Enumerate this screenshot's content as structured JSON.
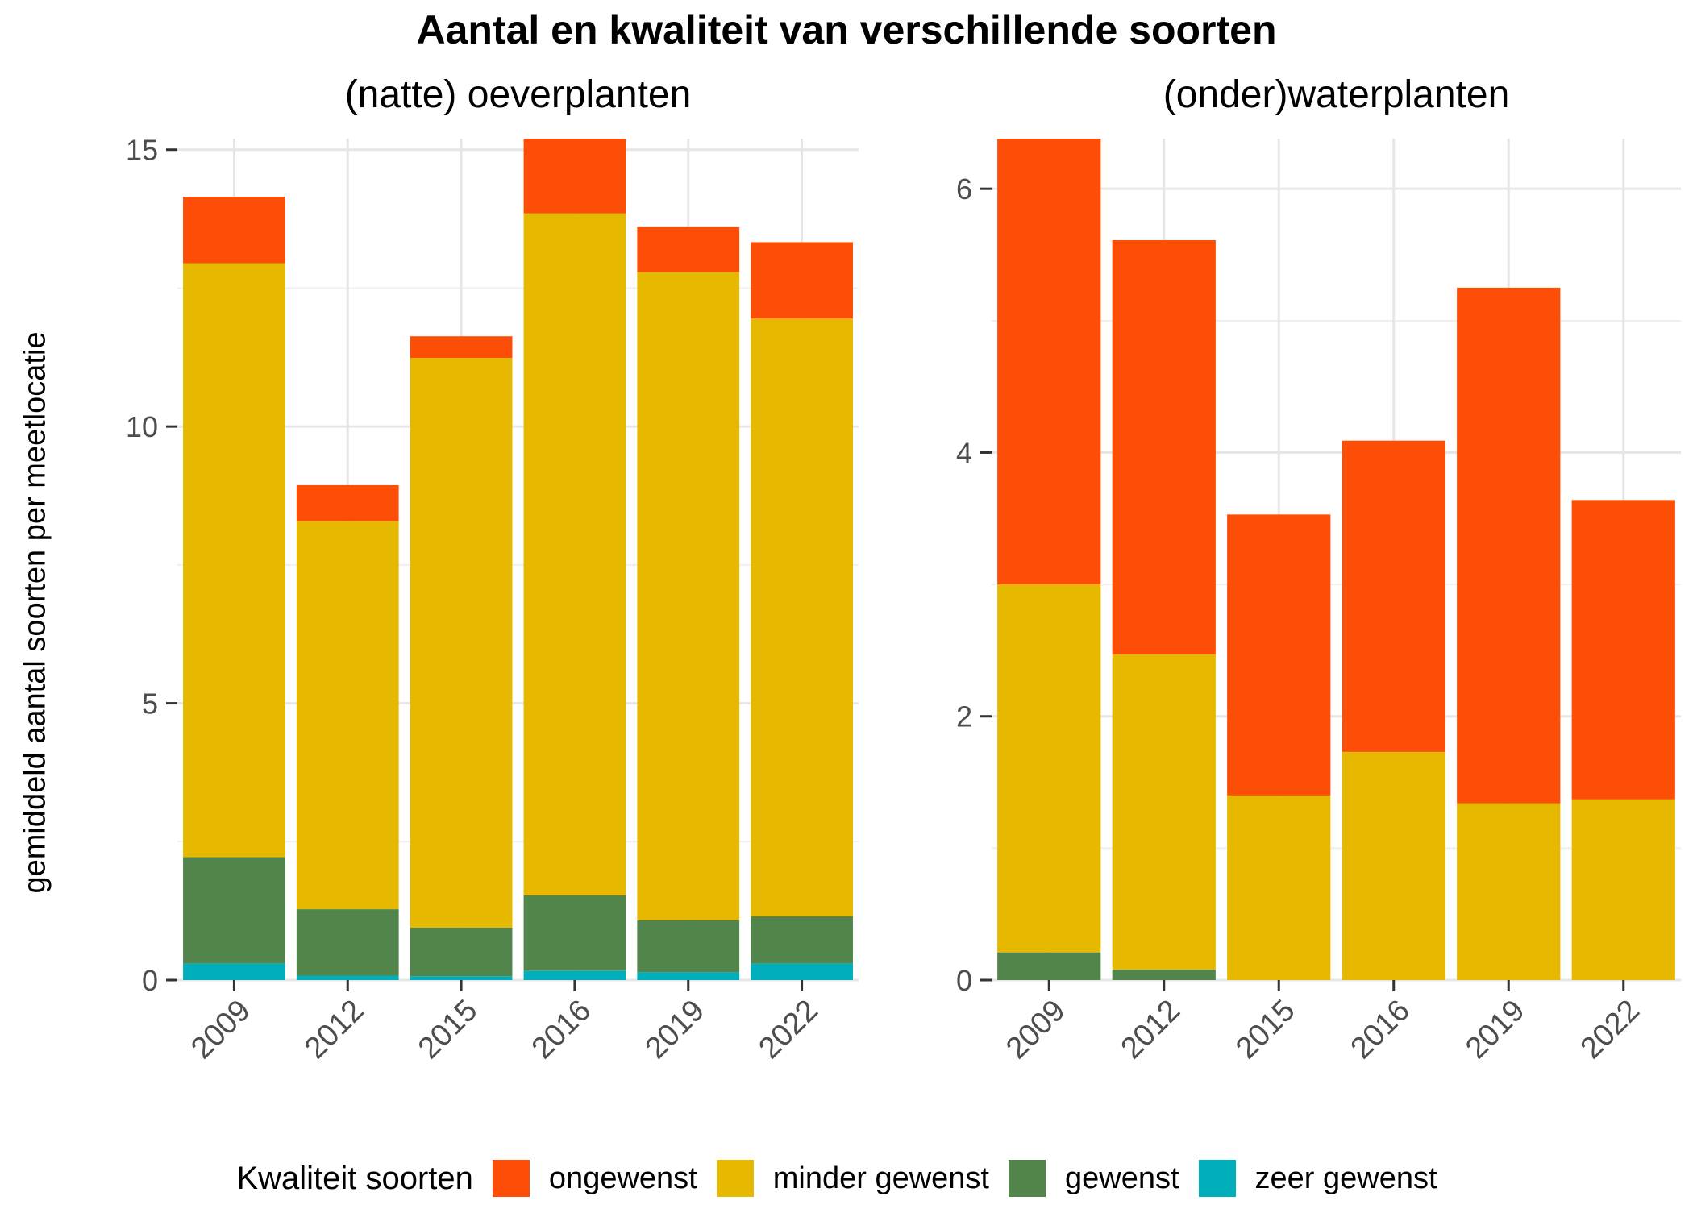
{
  "title": "Aantal en kwaliteit van verschillende soorten",
  "ylabel": "gemiddeld aantal soorten per meetlocatie",
  "legend": {
    "title": "Kwaliteit soorten",
    "items": [
      {
        "label": "ongewenst",
        "color": "#FC4E07"
      },
      {
        "label": "minder gewenst",
        "color": "#E7B800"
      },
      {
        "label": "gewenst",
        "color": "#52854C"
      },
      {
        "label": "zeer gewenst",
        "color": "#00AFBB"
      }
    ]
  },
  "chart_data": [
    {
      "type": "bar",
      "stacked": true,
      "title": "(natte) oeverplanten",
      "categories": [
        "2009",
        "2012",
        "2015",
        "2016",
        "2019",
        "2022"
      ],
      "ylim": [
        0,
        15.2
      ],
      "yticks": [
        0,
        5,
        10,
        15
      ],
      "grid": true,
      "series": [
        {
          "name": "zeer gewenst",
          "color": "#00AFBB",
          "values": [
            0.3,
            0.08,
            0.07,
            0.17,
            0.14,
            0.3
          ]
        },
        {
          "name": "gewenst",
          "color": "#52854C",
          "values": [
            1.92,
            1.2,
            0.88,
            1.36,
            0.94,
            0.85
          ]
        },
        {
          "name": "minder gewenst",
          "color": "#E7B800",
          "values": [
            10.73,
            7.01,
            10.29,
            12.32,
            11.71,
            10.8
          ]
        },
        {
          "name": "ongewenst",
          "color": "#FC4E07",
          "values": [
            1.2,
            0.65,
            0.39,
            1.35,
            0.81,
            1.38
          ]
        }
      ]
    },
    {
      "type": "bar",
      "stacked": true,
      "title": "(onder)waterplanten",
      "categories": [
        "2009",
        "2012",
        "2015",
        "2016",
        "2019",
        "2022"
      ],
      "ylim": [
        0,
        6.38
      ],
      "yticks": [
        0,
        2,
        4,
        6
      ],
      "grid": true,
      "series": [
        {
          "name": "zeer gewenst",
          "color": "#00AFBB",
          "values": [
            0,
            0,
            0,
            0,
            0,
            0
          ]
        },
        {
          "name": "gewenst",
          "color": "#52854C",
          "values": [
            0.21,
            0.08,
            0,
            0,
            0,
            0
          ]
        },
        {
          "name": "minder gewenst",
          "color": "#E7B800",
          "values": [
            2.79,
            2.39,
            1.4,
            1.73,
            1.34,
            1.37
          ]
        },
        {
          "name": "ongewenst",
          "color": "#FC4E07",
          "values": [
            3.38,
            3.14,
            2.13,
            2.36,
            3.91,
            2.27
          ]
        }
      ]
    }
  ]
}
